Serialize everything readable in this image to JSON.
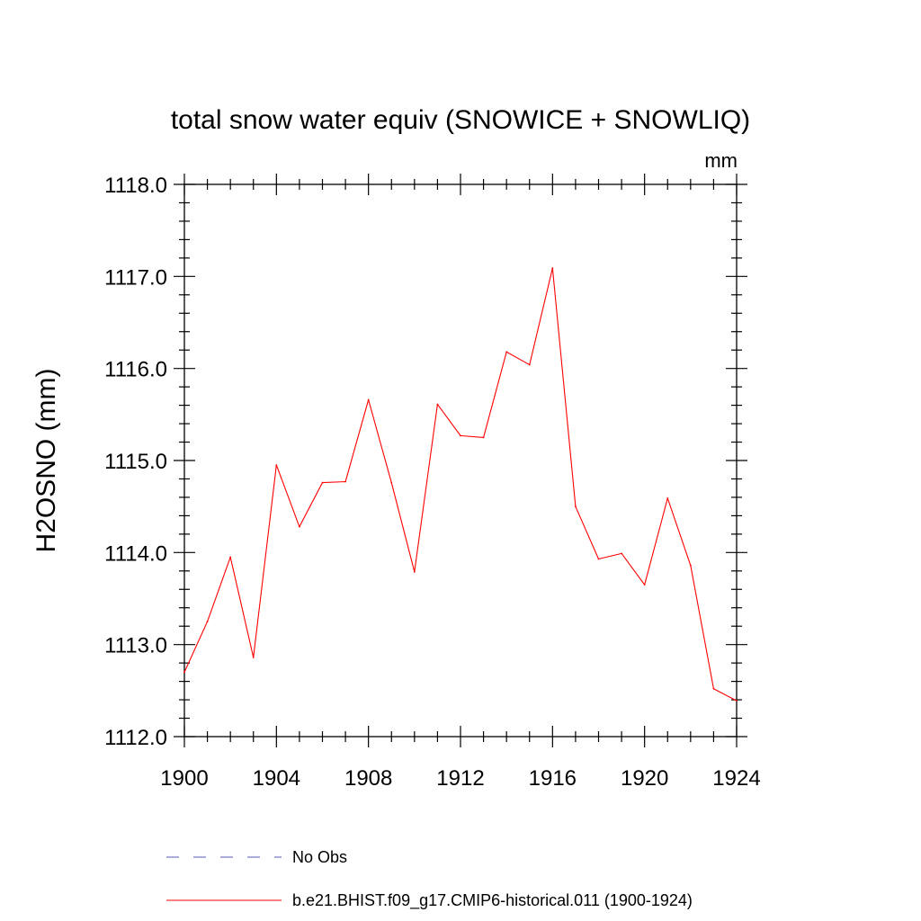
{
  "chart_data": {
    "type": "line",
    "title": "total snow water equiv (SNOWICE + SNOWLIQ)",
    "units_label": "mm",
    "ylabel": "H2OSNO  (mm)",
    "xlabel": "",
    "xlim": [
      1900,
      1924
    ],
    "ylim": [
      1112.0,
      1118.0
    ],
    "x_ticks": [
      1900,
      1904,
      1908,
      1912,
      1916,
      1920,
      1924
    ],
    "x_tick_labels": [
      "1900",
      "1904",
      "1908",
      "1912",
      "1916",
      "1920",
      "1924"
    ],
    "y_ticks": [
      1112.0,
      1113.0,
      1114.0,
      1115.0,
      1116.0,
      1117.0,
      1118.0
    ],
    "y_tick_labels": [
      "1112.0",
      "1113.0",
      "1114.0",
      "1115.0",
      "1116.0",
      "1117.0",
      "1118.0"
    ],
    "grid": false,
    "legend_position": "bottom",
    "series": [
      {
        "name": "No Obs",
        "color": "#5a5ab4",
        "dash": "dashed",
        "x": [],
        "values": []
      },
      {
        "name": "b.e21.BHIST.f09_g17.CMIP6-historical.011 (1900-1924)",
        "color": "#ff0000",
        "dash": "solid",
        "x": [
          1900,
          1901,
          1902,
          1903,
          1904,
          1905,
          1906,
          1907,
          1908,
          1909,
          1910,
          1911,
          1912,
          1913,
          1914,
          1915,
          1916,
          1917,
          1918,
          1919,
          1920,
          1921,
          1922,
          1923,
          1924
        ],
        "values": [
          1112.7,
          1113.25,
          1113.95,
          1112.86,
          1114.95,
          1114.28,
          1114.76,
          1114.77,
          1115.66,
          1114.76,
          1113.79,
          1115.61,
          1115.27,
          1115.25,
          1116.18,
          1116.04,
          1117.09,
          1114.5,
          1113.93,
          1113.99,
          1113.65,
          1114.59,
          1113.86,
          1112.52,
          1112.39
        ]
      }
    ]
  }
}
